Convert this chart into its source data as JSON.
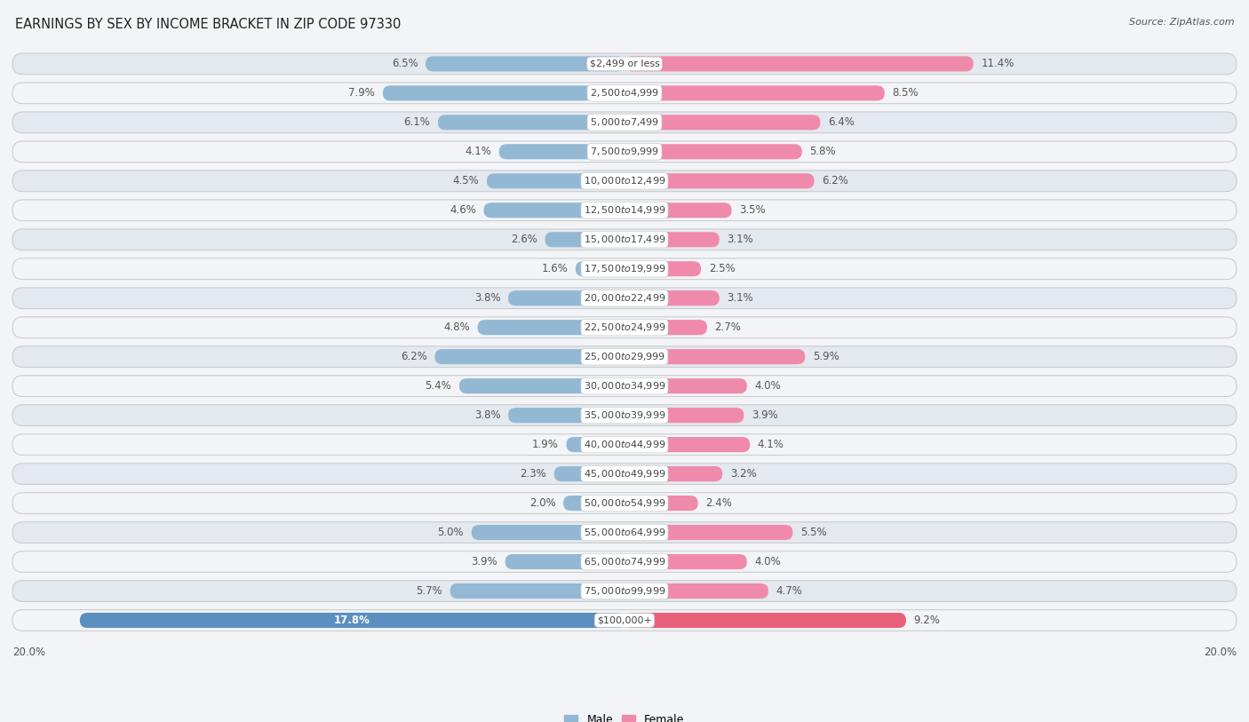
{
  "title": "EARNINGS BY SEX BY INCOME BRACKET IN ZIP CODE 97330",
  "source": "Source: ZipAtlas.com",
  "categories": [
    "$2,499 or less",
    "$2,500 to $4,999",
    "$5,000 to $7,499",
    "$7,500 to $9,999",
    "$10,000 to $12,499",
    "$12,500 to $14,999",
    "$15,000 to $17,499",
    "$17,500 to $19,999",
    "$20,000 to $22,499",
    "$22,500 to $24,999",
    "$25,000 to $29,999",
    "$30,000 to $34,999",
    "$35,000 to $39,999",
    "$40,000 to $44,999",
    "$45,000 to $49,999",
    "$50,000 to $54,999",
    "$55,000 to $64,999",
    "$65,000 to $74,999",
    "$75,000 to $99,999",
    "$100,000+"
  ],
  "male_values": [
    6.5,
    7.9,
    6.1,
    4.1,
    4.5,
    4.6,
    2.6,
    1.6,
    3.8,
    4.8,
    6.2,
    5.4,
    3.8,
    1.9,
    2.3,
    2.0,
    5.0,
    3.9,
    5.7,
    17.8
  ],
  "female_values": [
    11.4,
    8.5,
    6.4,
    5.8,
    6.2,
    3.5,
    3.1,
    2.5,
    3.1,
    2.7,
    5.9,
    4.0,
    3.9,
    4.1,
    3.2,
    2.4,
    5.5,
    4.0,
    4.7,
    9.2
  ],
  "male_color": "#92b8d4",
  "female_color": "#f08aaa",
  "male_last_color": "#5b8fbf",
  "female_last_color": "#e8607a",
  "row_bg_light": "#f2f4f7",
  "row_bg_dark": "#e4e8ef",
  "bg_color": "#f2f4f7",
  "axis_max": 20.0,
  "legend_male": "Male",
  "legend_female": "Female",
  "title_fontsize": 10.5,
  "label_fontsize": 8.5,
  "category_fontsize": 8.0,
  "source_fontsize": 8.0,
  "value_label_color": "#555555",
  "category_label_color": "#444444"
}
